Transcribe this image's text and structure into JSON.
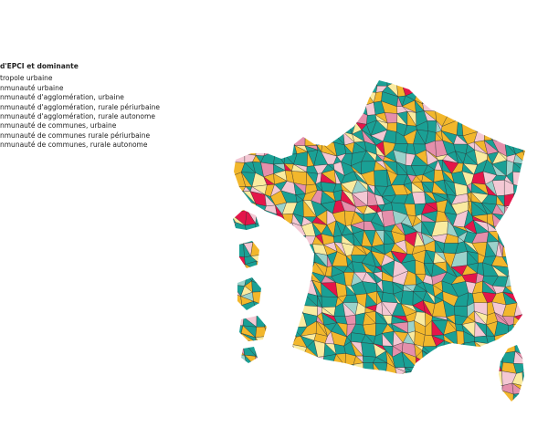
{
  "legend": {
    "title": "d'EPCI et dominante",
    "items": [
      "tropole urbaine",
      "nmunauté urbaine",
      "nmunauté d'agglomération, urbaine",
      "nmunauté d'agglomération, rurale périurbaine",
      "nmunauté d'agglomération, rurale autonome",
      "nmunauté de communes, urbaine",
      "nmunauté de communes  rurale périurbaine",
      "nmunauté de communes, rurale autonome"
    ]
  }
}
